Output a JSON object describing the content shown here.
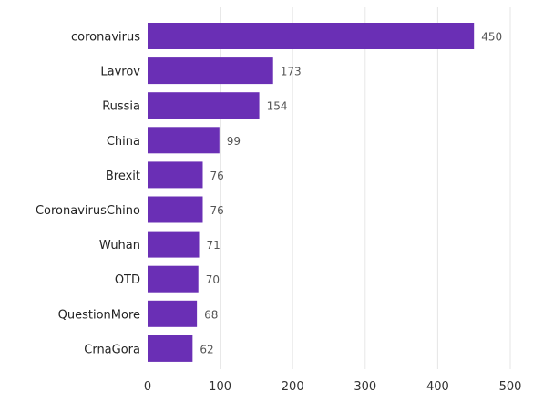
{
  "chart_data": {
    "type": "bar",
    "orientation": "horizontal",
    "categories": [
      "coronavirus",
      "Lavrov",
      "Russia",
      "China",
      "Brexit",
      "CoronavirusChino",
      "Wuhan",
      "OTD",
      "QuestionMore",
      "CrnaGora"
    ],
    "values": [
      450,
      173,
      154,
      99,
      76,
      76,
      71,
      70,
      68,
      62
    ],
    "xlim": [
      0,
      500
    ],
    "xticks": [
      0,
      100,
      200,
      300,
      400,
      500
    ],
    "grid": true,
    "title": "",
    "xlabel": "",
    "ylabel": "",
    "bar_color": "#6a2fb5"
  }
}
